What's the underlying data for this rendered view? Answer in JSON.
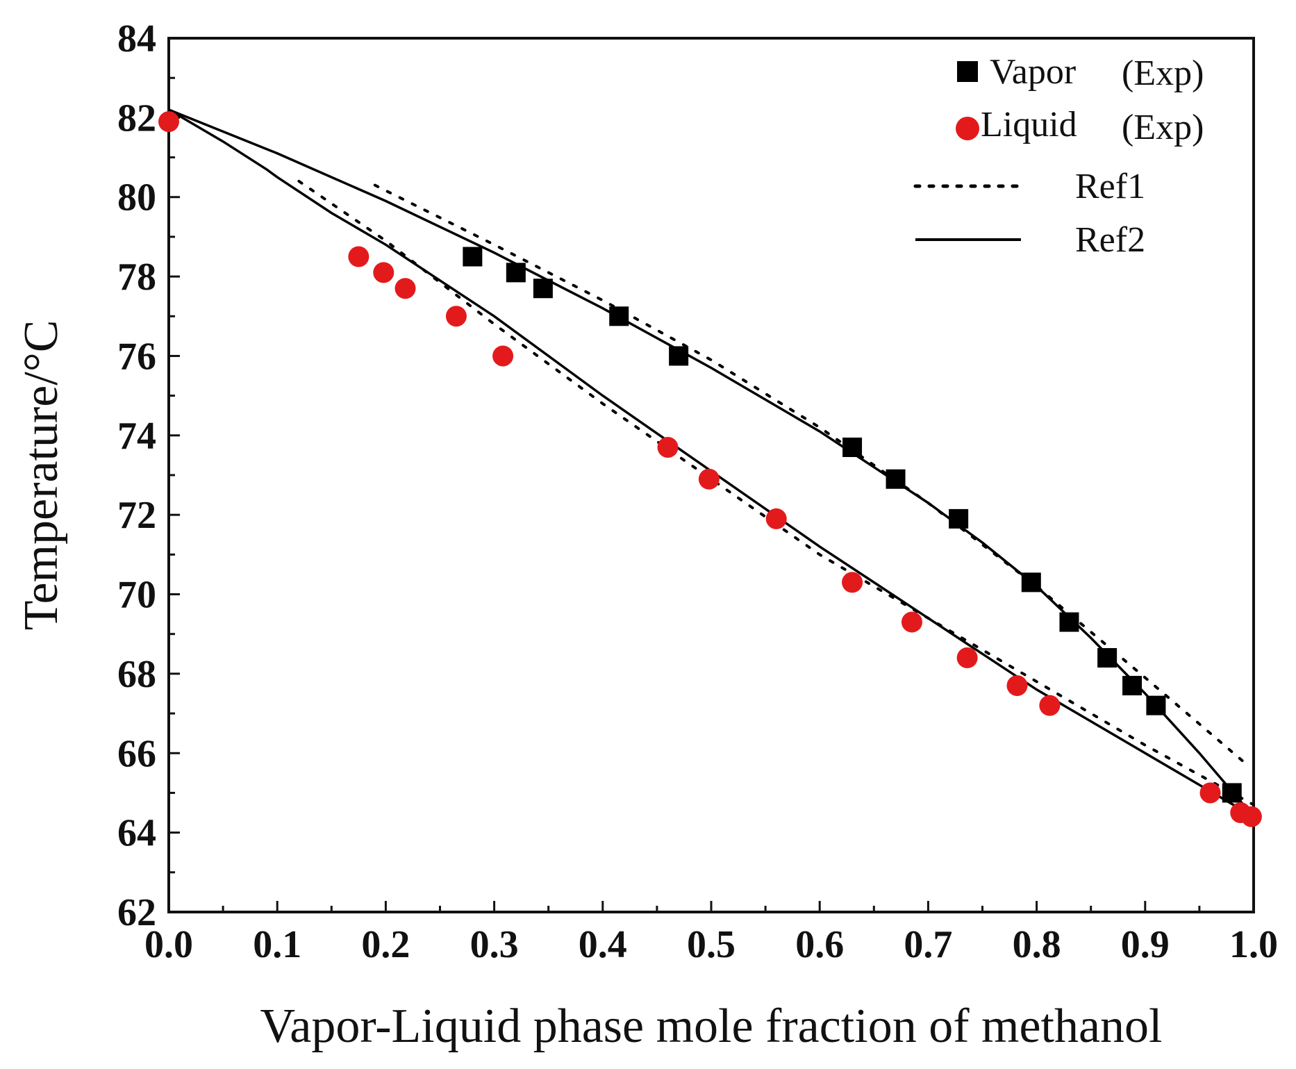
{
  "chart_data": {
    "type": "scatter",
    "xlabel": "Vapor-Liquid phase mole fraction of methanol",
    "ylabel": "Temperature/°C",
    "xlim": [
      0.0,
      1.0
    ],
    "ylim": [
      62,
      84
    ],
    "x_ticks": [
      "0.0",
      "0.1",
      "0.2",
      "0.3",
      "0.4",
      "0.5",
      "0.6",
      "0.7",
      "0.8",
      "0.9",
      "1.0"
    ],
    "y_ticks": [
      "62",
      "64",
      "66",
      "68",
      "70",
      "72",
      "74",
      "76",
      "78",
      "80",
      "82",
      "84"
    ],
    "legend": {
      "position": "top-right",
      "entries": [
        {
          "label": "Vapor",
          "note": "(Exp)",
          "series": "vapor"
        },
        {
          "label": "Liquid",
          "note": "(Exp)",
          "series": "liquid"
        },
        {
          "label": "Ref1",
          "series": "ref1"
        },
        {
          "label": "Ref2",
          "series": "ref2"
        }
      ]
    },
    "colors": {
      "vapor": "#000000",
      "liquid": "#e31a1c",
      "ref": "#000000"
    },
    "series": [
      {
        "name": "Vapor (Exp)",
        "kind": "scatter",
        "marker": "square",
        "x": [
          0.28,
          0.32,
          0.345,
          0.415,
          0.47,
          0.63,
          0.67,
          0.728,
          0.795,
          0.83,
          0.865,
          0.888,
          0.91,
          0.98
        ],
        "y": [
          78.5,
          78.1,
          77.7,
          77.0,
          76.0,
          73.7,
          72.9,
          71.9,
          70.3,
          69.3,
          68.4,
          67.7,
          67.2,
          65.0
        ]
      },
      {
        "name": "Liquid (Exp)",
        "kind": "scatter",
        "marker": "circle",
        "x": [
          0.0,
          0.175,
          0.198,
          0.218,
          0.265,
          0.308,
          0.46,
          0.498,
          0.56,
          0.63,
          0.685,
          0.736,
          0.782,
          0.812,
          0.96,
          0.988,
          0.998
        ],
        "y": [
          81.9,
          78.5,
          78.1,
          77.7,
          77.0,
          76.0,
          73.7,
          72.9,
          71.9,
          70.3,
          69.3,
          68.4,
          67.7,
          67.2,
          65.0,
          64.5,
          64.4
        ]
      },
      {
        "name": "Ref1 vapor",
        "kind": "line",
        "style": "dotted",
        "x": [
          0.19,
          0.3,
          0.4,
          0.5,
          0.6,
          0.7,
          0.8,
          0.9,
          0.99
        ],
        "y": [
          80.3,
          78.8,
          77.4,
          75.9,
          74.2,
          72.3,
          70.2,
          67.9,
          65.8
        ]
      },
      {
        "name": "Ref1 liquid",
        "kind": "line",
        "style": "dotted",
        "x": [
          0.12,
          0.2,
          0.3,
          0.4,
          0.5,
          0.6,
          0.7,
          0.8,
          0.9,
          1.0
        ],
        "y": [
          80.4,
          78.9,
          76.8,
          74.8,
          72.9,
          71.0,
          69.4,
          67.8,
          66.2,
          64.7
        ]
      },
      {
        "name": "Ref2 vapor",
        "kind": "line",
        "style": "solid",
        "x": [
          0.0,
          0.1,
          0.2,
          0.3,
          0.4,
          0.5,
          0.6,
          0.65,
          0.7,
          0.75,
          0.8,
          0.85,
          0.9,
          0.95,
          1.0
        ],
        "y": [
          82.2,
          81.1,
          79.9,
          78.6,
          77.2,
          75.7,
          74.1,
          73.2,
          72.3,
          71.3,
          70.2,
          68.9,
          67.5,
          66.0,
          64.4
        ]
      },
      {
        "name": "Ref2 liquid",
        "kind": "line",
        "style": "solid",
        "x": [
          0.0,
          0.05,
          0.09,
          0.1,
          0.15,
          0.2,
          0.25,
          0.3,
          0.4,
          0.5,
          0.6,
          0.7,
          0.8,
          0.85,
          0.9,
          0.95,
          1.0
        ],
        "y": [
          82.2,
          81.4,
          80.7,
          80.5,
          79.6,
          78.8,
          77.9,
          77.0,
          75.0,
          73.1,
          71.2,
          69.4,
          67.6,
          66.8,
          66.0,
          65.2,
          64.4
        ]
      }
    ]
  }
}
